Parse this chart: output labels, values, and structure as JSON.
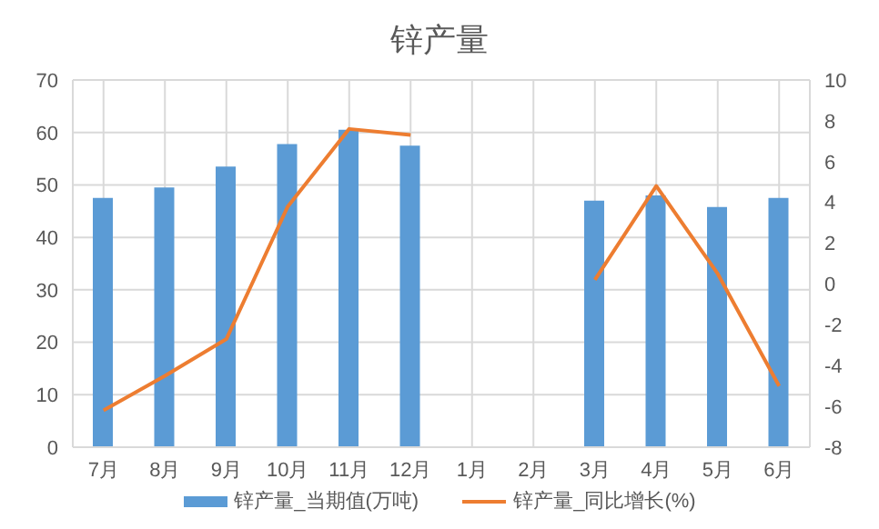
{
  "chart_data": {
    "type": "bar",
    "title": "锌产量",
    "categories": [
      "7月",
      "8月",
      "9月",
      "10月",
      "11月",
      "12月",
      "1月",
      "2月",
      "3月",
      "4月",
      "5月",
      "6月"
    ],
    "series": [
      {
        "name": "锌产量_当期值(万吨)",
        "color": "#5b9bd5",
        "values": [
          47.5,
          49.5,
          53.5,
          57.8,
          60.5,
          57.5,
          null,
          null,
          47,
          48,
          45.8,
          47.5
        ]
      },
      {
        "name": "锌产量_同比增长(%)",
        "type": "line",
        "axis": "y2",
        "color": "#ed7d31",
        "values": [
          -6.2,
          -4.5,
          -2.7,
          3.8,
          7.6,
          7.3,
          null,
          null,
          0.2,
          4.8,
          0.5,
          -5.0
        ]
      }
    ],
    "ylim": [
      0,
      70
    ],
    "yticks": [
      0,
      10,
      20,
      30,
      40,
      50,
      60,
      70
    ],
    "y2lim": [
      -8,
      10
    ],
    "y2ticks": [
      -8,
      -6,
      -4,
      -2,
      0,
      2,
      4,
      6,
      8,
      10
    ],
    "grid": true,
    "legend": "bottom",
    "marker": "none"
  }
}
